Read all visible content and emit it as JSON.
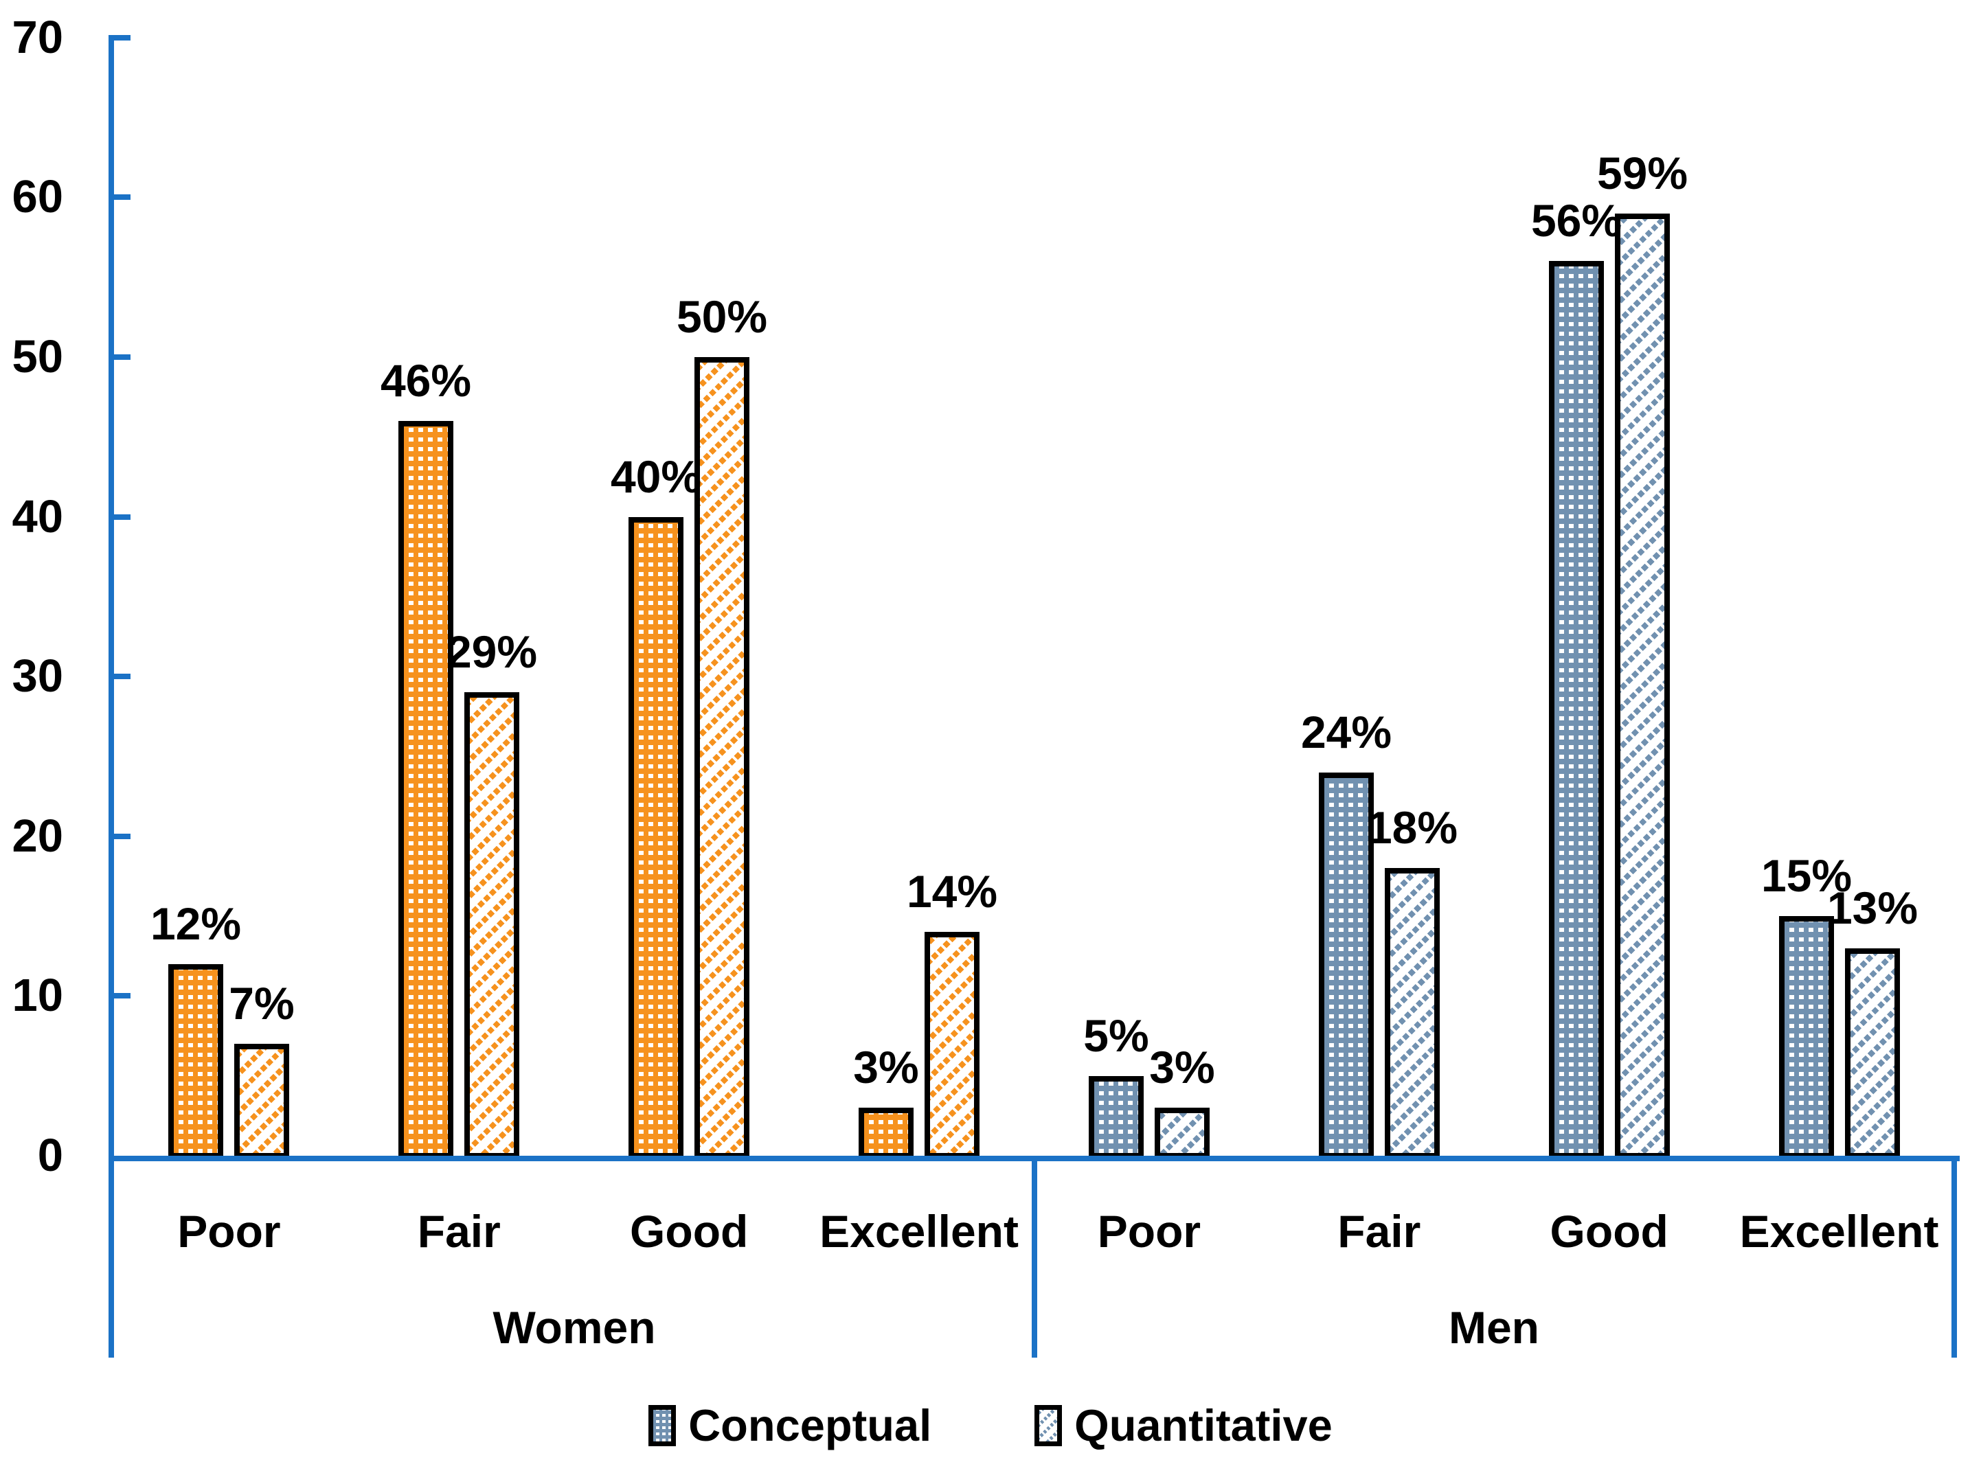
{
  "chart_data": {
    "type": "bar",
    "title": "",
    "y_axis": {
      "min": 0,
      "max": 70,
      "tick_step": 10,
      "tick_labels": [
        "0",
        "10",
        "20",
        "30",
        "40",
        "50",
        "60",
        "70"
      ]
    },
    "grid": false,
    "data_label_suffix": "%",
    "categories": [
      "Poor",
      "Fair",
      "Good",
      "Excellent"
    ],
    "groups": [
      {
        "label": "Women",
        "categories": [
          "Poor",
          "Fair",
          "Good",
          "Excellent"
        ],
        "series": [
          {
            "name": "Conceptual",
            "pattern": "dotted-grid",
            "values": [
              12,
              46,
              40,
              3
            ]
          },
          {
            "name": "Quantitative",
            "pattern": "diagonal-stripes",
            "values": [
              7,
              29,
              50,
              14
            ]
          }
        ]
      },
      {
        "label": "Men",
        "categories": [
          "Poor",
          "Fair",
          "Good",
          "Excellent"
        ],
        "series": [
          {
            "name": "Conceptual",
            "pattern": "dotted-grid",
            "values": [
              5,
              24,
              56,
              15
            ]
          },
          {
            "name": "Quantitative",
            "pattern": "diagonal-stripes",
            "values": [
              3,
              18,
              59,
              13
            ]
          }
        ]
      }
    ],
    "legend": {
      "position": "bottom",
      "entries": [
        {
          "label": "Conceptual",
          "pattern": "dotted-grid"
        },
        {
          "label": "Quantitative",
          "pattern": "diagonal-stripes"
        }
      ]
    }
  },
  "colors": {
    "women_series": "#F6921E",
    "men_series": "#7191B0",
    "axis": "#1B72C6",
    "text": "#000000",
    "bar_border": "#000000",
    "legend_swatch": "#7191B0"
  }
}
